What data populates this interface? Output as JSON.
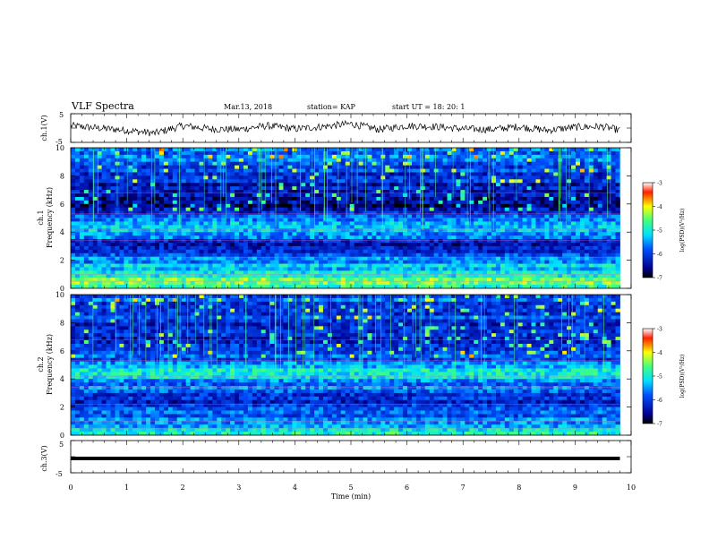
{
  "header": {
    "title": "VLF Spectra",
    "date": "Mar.13, 2018",
    "station": "station= KAP",
    "start": "start  UT =   18: 20: 1"
  },
  "chart_data": [
    {
      "type": "line",
      "ylabel": "ch.1(V)",
      "xlabel": "",
      "xlim": [
        0,
        10
      ],
      "ylim": [
        -5,
        5
      ],
      "yticks": [
        "5",
        "-5"
      ],
      "series": [
        {
          "x": [
            0.0,
            0.5,
            1.0,
            1.5,
            2.0,
            2.5,
            3.0,
            3.5,
            4.0,
            4.5,
            5.0,
            5.5,
            6.0,
            6.5,
            7.0,
            7.5,
            8.0,
            8.5,
            9.0,
            9.5,
            9.8
          ],
          "values": [
            0.8,
            0.0,
            -0.8,
            -1.8,
            0.8,
            -0.3,
            -0.5,
            0.8,
            -0.3,
            0.5,
            1.5,
            -0.5,
            0.8,
            0.5,
            -0.3,
            -0.5,
            0.5,
            -0.8,
            0.3,
            0.5,
            -0.8
          ]
        }
      ]
    },
    {
      "type": "heatmap",
      "xlabel": "",
      "ylabel": "Frequency (kHz)",
      "channel_label": "ch.1",
      "xlim": [
        0,
        10
      ],
      "ylim": [
        0,
        10
      ],
      "yticks": [
        "0",
        "2",
        "4",
        "6",
        "8",
        "10"
      ],
      "freq_kHz": [
        0.25,
        0.75,
        1.25,
        1.75,
        2.25,
        2.75,
        3.25,
        3.75,
        4.25,
        4.75,
        5.25,
        5.75,
        6.25,
        6.75,
        7.25,
        7.75,
        8.25,
        8.75,
        9.25,
        9.75
      ],
      "log_psd": [
        -4.8,
        -4.7,
        -5.2,
        -5.4,
        -5.6,
        -6.0,
        -6.3,
        -5.6,
        -5.5,
        -5.3,
        -6.0,
        -6.4,
        -6.6,
        -6.3,
        -6.3,
        -6.2,
        -6.1,
        -5.9,
        -5.8,
        -5.7
      ],
      "colorbar": {
        "label": "log(PSD)(V²/Hz)",
        "range": [
          -7,
          -3
        ],
        "ticks": [
          "-3",
          "-4",
          "-5",
          "-6",
          "-7"
        ]
      }
    },
    {
      "type": "heatmap",
      "xlabel": "",
      "ylabel": "Frequency (kHz)",
      "channel_label": "ch.2",
      "xlim": [
        0,
        10
      ],
      "ylim": [
        0,
        10
      ],
      "yticks": [
        "0",
        "2",
        "4",
        "6",
        "8",
        "10"
      ],
      "freq_kHz": [
        0.25,
        0.75,
        1.25,
        1.75,
        2.25,
        2.75,
        3.25,
        3.75,
        4.25,
        4.75,
        5.25,
        5.75,
        6.25,
        6.75,
        7.25,
        7.75,
        8.25,
        8.75,
        9.25,
        9.75
      ],
      "log_psd": [
        -5.0,
        -5.4,
        -5.8,
        -5.5,
        -6.2,
        -6.3,
        -5.8,
        -5.5,
        -4.9,
        -5.2,
        -5.8,
        -6.0,
        -6.1,
        -6.2,
        -6.1,
        -6.1,
        -6.0,
        -6.0,
        -5.9,
        -5.9
      ],
      "colorbar": {
        "label": "log(PSD)(V²/Hz)",
        "range": [
          -7,
          -3
        ],
        "ticks": [
          "-3",
          "-4",
          "-5",
          "-6",
          "-7"
        ]
      }
    },
    {
      "type": "line",
      "ylabel": "ch.3(V)",
      "xlabel": "Time (min)",
      "xlim": [
        0,
        10
      ],
      "ylim": [
        -5,
        5
      ],
      "yticks": [
        "5",
        "-5"
      ],
      "xticks": [
        "0",
        "1",
        "2",
        "3",
        "4",
        "5",
        "6",
        "7",
        "8",
        "9",
        "10"
      ],
      "series": [
        {
          "x": [
            0,
            9.8
          ],
          "values": [
            0,
            0
          ]
        }
      ]
    }
  ]
}
